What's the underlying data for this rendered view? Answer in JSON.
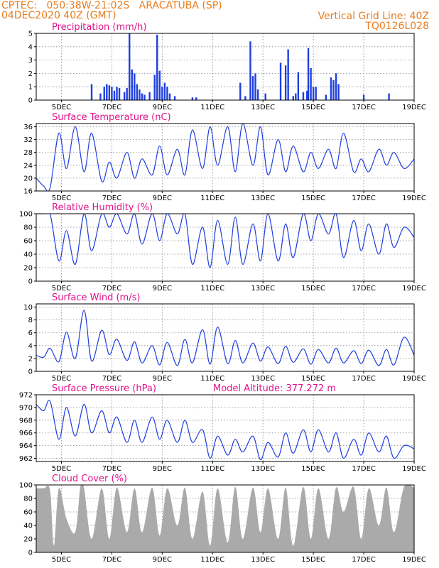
{
  "header": {
    "line1_left": "CPTEC:   050:38W-21:02S   ARACATUBA (SP)",
    "line2_left": "04DEC2020 40Z (GMT)",
    "line1_right": "Vertical Grid Line: 40Z",
    "line2_right": "TQ0126L028"
  },
  "colors": {
    "header": "#e87c1e",
    "title": "#e0138c",
    "series": "#1f3fe0",
    "bar": "#1f3fe0",
    "cloud": "#aaaaaa"
  },
  "x_ticks": [
    "5DEC",
    "7DEC",
    "9DEC",
    "11DEC",
    "13DEC",
    "15DEC",
    "17DEC",
    "19DEC"
  ],
  "chart_data": [
    {
      "type": "bar",
      "title": "Precipitation (mm/h)",
      "x_range_days": [
        4.0,
        19.0
      ],
      "ylim": [
        0,
        5
      ],
      "yticks": [
        0,
        1,
        2,
        3,
        4,
        5
      ],
      "x": [
        6.2,
        6.55,
        6.7,
        6.8,
        6.9,
        7.0,
        7.1,
        7.2,
        7.3,
        7.5,
        7.6,
        7.7,
        7.8,
        7.9,
        8.0,
        8.1,
        8.2,
        8.3,
        8.5,
        8.7,
        8.8,
        8.9,
        9.0,
        9.1,
        9.2,
        9.3,
        9.5,
        10.2,
        10.35,
        12.1,
        12.3,
        12.5,
        12.6,
        12.7,
        12.8,
        13.1,
        13.7,
        13.9,
        14.0,
        14.2,
        14.3,
        14.4,
        14.6,
        14.75,
        14.8,
        14.9,
        15.0,
        15.1,
        15.5,
        15.7,
        15.8,
        15.9,
        16.0,
        17.0,
        18.0
      ],
      "values": [
        1.2,
        0.5,
        1.0,
        1.2,
        1.1,
        1.0,
        0.7,
        1.0,
        0.9,
        0.6,
        0.9,
        5.0,
        2.3,
        2.0,
        1.2,
        0.8,
        0.5,
        0.4,
        0.6,
        1.9,
        4.9,
        2.2,
        1.0,
        1.3,
        1.0,
        0.5,
        0.3,
        0.2,
        0.2,
        1.3,
        0.3,
        4.4,
        1.8,
        2.0,
        0.8,
        0.5,
        2.8,
        2.6,
        3.8,
        0.3,
        0.5,
        2.1,
        0.6,
        0.7,
        3.9,
        2.4,
        1.0,
        1.0,
        0.4,
        1.7,
        1.5,
        2.0,
        1.2,
        0.4,
        0.5
      ]
    },
    {
      "type": "line",
      "title": "Surface Temperature (nC)",
      "x_range_days": [
        4.0,
        19.0
      ],
      "ylim": [
        16,
        37
      ],
      "yticks": [
        16,
        20,
        24,
        28,
        32,
        36
      ],
      "x": [
        4.0,
        4.3,
        4.55,
        4.9,
        5.2,
        5.55,
        5.9,
        6.2,
        6.6,
        6.9,
        7.2,
        7.6,
        7.9,
        8.2,
        8.6,
        8.9,
        9.2,
        9.6,
        9.9,
        10.2,
        10.6,
        10.9,
        11.2,
        11.6,
        11.9,
        12.2,
        12.6,
        12.9,
        13.2,
        13.6,
        13.9,
        14.2,
        14.6,
        14.9,
        15.2,
        15.6,
        15.9,
        16.2,
        16.6,
        16.9,
        17.2,
        17.6,
        17.9,
        18.2,
        18.6,
        19.0
      ],
      "values": [
        20,
        17.5,
        17,
        34,
        23,
        36,
        22,
        34,
        19,
        25,
        20,
        28,
        20,
        26,
        21,
        30,
        21,
        29,
        21,
        35,
        23,
        36,
        24,
        36,
        22,
        37,
        24,
        36,
        21,
        32,
        22,
        30,
        22,
        28,
        23,
        29,
        23,
        34,
        22,
        26,
        22,
        29,
        24,
        28,
        23,
        26
      ]
    },
    {
      "type": "line",
      "title": "Relative Humidity (%)",
      "x_range_days": [
        4.0,
        19.0
      ],
      "ylim": [
        0,
        100
      ],
      "yticks": [
        0,
        20,
        40,
        60,
        80,
        100
      ],
      "x": [
        4.0,
        4.3,
        4.55,
        4.9,
        5.2,
        5.55,
        5.9,
        6.2,
        6.6,
        6.9,
        7.2,
        7.6,
        7.9,
        8.2,
        8.6,
        8.9,
        9.2,
        9.6,
        9.9,
        10.2,
        10.6,
        10.9,
        11.2,
        11.6,
        11.9,
        12.2,
        12.6,
        12.9,
        13.2,
        13.6,
        13.9,
        14.2,
        14.6,
        14.9,
        15.2,
        15.6,
        15.9,
        16.2,
        16.6,
        16.9,
        17.2,
        17.6,
        17.9,
        18.2,
        18.6,
        19.0
      ],
      "values": [
        100,
        100,
        100,
        30,
        75,
        25,
        100,
        45,
        100,
        80,
        100,
        70,
        100,
        55,
        100,
        60,
        100,
        70,
        100,
        25,
        80,
        20,
        90,
        25,
        95,
        25,
        85,
        30,
        100,
        30,
        85,
        35,
        100,
        60,
        100,
        70,
        100,
        35,
        90,
        45,
        85,
        40,
        85,
        50,
        80,
        65
      ]
    },
    {
      "type": "line",
      "title": "Surface Wind (m/s)",
      "x_range_days": [
        4.0,
        19.0
      ],
      "ylim": [
        0,
        10.5
      ],
      "yticks": [
        0,
        2,
        4,
        6,
        8,
        10
      ],
      "x": [
        4.0,
        4.3,
        4.55,
        4.9,
        5.2,
        5.55,
        5.9,
        6.2,
        6.6,
        6.9,
        7.2,
        7.6,
        7.9,
        8.2,
        8.6,
        8.9,
        9.2,
        9.6,
        9.9,
        10.2,
        10.6,
        10.9,
        11.2,
        11.6,
        11.9,
        12.2,
        12.6,
        12.9,
        13.2,
        13.6,
        13.9,
        14.2,
        14.6,
        14.9,
        15.2,
        15.6,
        15.9,
        16.2,
        16.6,
        16.9,
        17.2,
        17.6,
        17.9,
        18.2,
        18.6,
        19.0
      ],
      "values": [
        2.5,
        2.2,
        3.6,
        1.5,
        6.1,
        2.0,
        9.5,
        1.6,
        6.4,
        2.6,
        5.0,
        1.7,
        4.6,
        1.3,
        4.0,
        1.0,
        4.5,
        0.9,
        5.0,
        1.3,
        6.5,
        1.1,
        6.9,
        1.2,
        4.8,
        1.3,
        4.4,
        1.6,
        3.8,
        1.2,
        3.9,
        1.4,
        3.5,
        1.1,
        3.4,
        1.3,
        3.6,
        1.3,
        3.2,
        1.2,
        3.3,
        0.9,
        3.4,
        1.0,
        5.3,
        2.5
      ]
    },
    {
      "type": "line",
      "title": "Surface Pressure (hPa)",
      "annotation": "Model Altitude: 377.272 m",
      "x_range_days": [
        4.0,
        19.0
      ],
      "ylim": [
        961.5,
        972
      ],
      "yticks": [
        962,
        964,
        966,
        968,
        970,
        972
      ],
      "x": [
        4.0,
        4.3,
        4.55,
        4.9,
        5.2,
        5.55,
        5.9,
        6.2,
        6.6,
        6.9,
        7.2,
        7.6,
        7.9,
        8.2,
        8.6,
        8.9,
        9.2,
        9.6,
        9.9,
        10.2,
        10.6,
        10.9,
        11.2,
        11.6,
        11.9,
        12.2,
        12.6,
        12.9,
        13.2,
        13.6,
        13.9,
        14.2,
        14.6,
        14.9,
        15.2,
        15.6,
        15.9,
        16.2,
        16.6,
        16.9,
        17.2,
        17.6,
        17.9,
        18.2,
        18.6,
        19.0
      ],
      "values": [
        970.5,
        969.5,
        971.0,
        965.0,
        970.0,
        965.5,
        970.5,
        966.0,
        969.5,
        966.0,
        968.5,
        964.5,
        968.0,
        964.5,
        968.5,
        965.0,
        968.0,
        964.5,
        968.0,
        964.5,
        966.5,
        962.0,
        965.5,
        962.5,
        965.0,
        963.0,
        965.5,
        961.8,
        964.5,
        962.2,
        966.0,
        962.8,
        966.5,
        963.0,
        966.5,
        963.0,
        966.0,
        962.0,
        965.0,
        962.5,
        966.0,
        963.0,
        965.5,
        962.0,
        964.0,
        963.5
      ]
    },
    {
      "type": "area",
      "title": "Cloud Cover (%)",
      "x_range_days": [
        4.0,
        19.0
      ],
      "ylim": [
        0,
        100
      ],
      "yticks": [
        0,
        20,
        40,
        60,
        80,
        100
      ],
      "x": [
        4.0,
        4.3,
        4.55,
        4.7,
        4.9,
        5.2,
        5.55,
        5.75,
        5.9,
        6.2,
        6.6,
        6.9,
        7.2,
        7.6,
        7.9,
        8.2,
        8.6,
        8.9,
        9.2,
        9.6,
        9.9,
        10.2,
        10.6,
        10.9,
        11.2,
        11.6,
        11.9,
        12.2,
        12.6,
        12.9,
        13.2,
        13.6,
        13.9,
        14.2,
        14.6,
        14.9,
        15.2,
        15.6,
        15.9,
        16.2,
        16.6,
        16.9,
        17.2,
        17.6,
        17.9,
        18.2,
        18.6,
        19.0
      ],
      "values": [
        95,
        95,
        92,
        10,
        95,
        50,
        30,
        97,
        95,
        20,
        95,
        20,
        96,
        30,
        95,
        30,
        96,
        25,
        95,
        40,
        96,
        20,
        90,
        10,
        95,
        15,
        97,
        20,
        96,
        30,
        95,
        20,
        96,
        10,
        97,
        20,
        95,
        20,
        96,
        60,
        97,
        20,
        95,
        40,
        96,
        30,
        97,
        96
      ]
    }
  ]
}
